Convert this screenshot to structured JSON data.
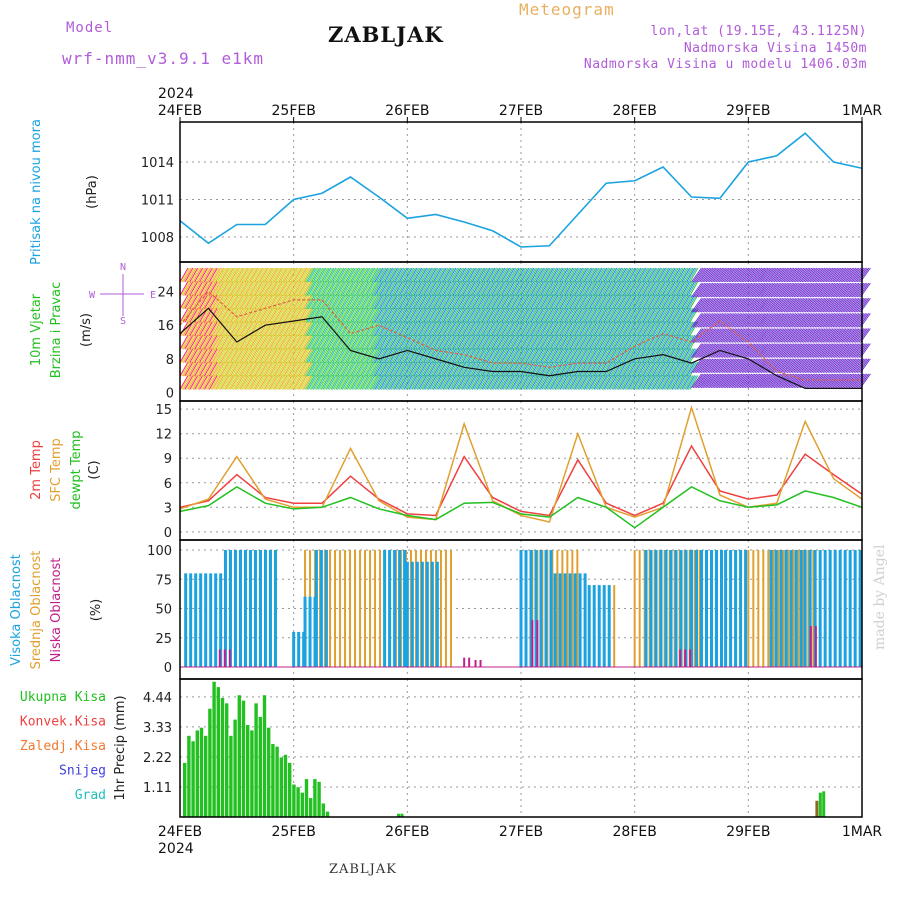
{
  "header": {
    "model_label": "Model",
    "model_name": "wrf-nmm_v3.9.1 e1km",
    "title": "ZABLJAK",
    "meteogram_label": "Meteogram",
    "coords": "lon,lat (19.15E, 43.1125N)",
    "altitude": "Nadmorska Visina 1450m",
    "model_altitude": "Nadmorska Visina u modelu 1406.03m"
  },
  "footer": {
    "station": "ZABLJAK"
  },
  "watermark": "made by Angel",
  "colors": {
    "pressure": "#1aa3e0",
    "temp2m": "#ef4040",
    "sfc": "#e0a030",
    "dewpoint": "#22c020",
    "cloud_high": "#1aa3e0",
    "cloud_mid": "#e0a030",
    "cloud_low": "#c0208a",
    "precip": "#22c020",
    "wind_high": "#8020c0"
  },
  "chart_data": [
    {
      "type": "line",
      "panel": "pressure",
      "x_axis_ticks_top": [
        "24FEB",
        "25FEB",
        "26FEB",
        "27FEB",
        "28FEB",
        "29FEB",
        "1MAR"
      ],
      "year_label": "2024",
      "ylabel_left": "Pritisak na nivou mora",
      "unit": "(hPa)",
      "yticks": [
        1008,
        1011,
        1014
      ],
      "ylim": [
        1006.0,
        1017.2
      ],
      "x": [
        0,
        0.25,
        0.5,
        0.75,
        1.0,
        1.25,
        1.5,
        1.75,
        2.0,
        2.25,
        2.5,
        2.75,
        3.0,
        3.25,
        3.5,
        3.75,
        4.0,
        4.25,
        4.5,
        4.75,
        5.0,
        5.25,
        5.5,
        5.75,
        6.0
      ],
      "series": [
        {
          "values": [
            1009.3,
            1007.5,
            1009.0,
            1009.0,
            1011.0,
            1011.5,
            1012.8,
            1011.2,
            1009.5,
            1009.8,
            1009.2,
            1008.5,
            1007.2,
            1007.3,
            1009.8,
            1012.3,
            1012.5,
            1013.6,
            1011.2,
            1011.1,
            1014.0,
            1014.5,
            1016.3,
            1014.0,
            1013.5
          ]
        }
      ]
    },
    {
      "type": "line",
      "panel": "wind",
      "ylabel_left": "10m Vjetar",
      "ylabel_left2": "Brzina i Pravac",
      "unit": "(m/s)",
      "compass": "N",
      "compass_w": "W",
      "compass_e": "E",
      "compass_s": "S",
      "yticks": [
        0,
        8,
        16,
        24
      ],
      "ylim": [
        -2,
        31
      ],
      "x": [
        0,
        0.25,
        0.5,
        0.75,
        1.0,
        1.25,
        1.5,
        1.75,
        2.0,
        2.25,
        2.5,
        2.75,
        3.0,
        3.25,
        3.5,
        3.75,
        4.0,
        4.25,
        4.5,
        4.75,
        5.0,
        5.25,
        5.5,
        5.75,
        6.0
      ],
      "series": [
        {
          "values": [
            14,
            20,
            12,
            16,
            17,
            18,
            10,
            8,
            10,
            8,
            6,
            5,
            5,
            4,
            5,
            5,
            8,
            9,
            7,
            10,
            8,
            4,
            1,
            1,
            1
          ]
        },
        {
          "values": [
            16,
            24,
            18,
            20,
            22,
            22,
            14,
            16,
            13,
            10,
            9,
            7,
            7,
            6,
            7,
            7,
            11,
            14,
            12,
            17,
            12,
            5,
            3,
            3,
            3
          ]
        }
      ]
    },
    {
      "type": "line",
      "panel": "temperature",
      "ylabel_left": "2m Temp",
      "ylabel_left2": "SFC Temp",
      "ylabel_left3": "dewpt Temp",
      "unit": "(C)",
      "yticks": [
        0,
        3,
        6,
        9,
        12,
        15
      ],
      "ylim": [
        -1.0,
        16.0
      ],
      "x": [
        0,
        0.25,
        0.5,
        0.75,
        1.0,
        1.25,
        1.5,
        1.75,
        2.0,
        2.25,
        2.5,
        2.75,
        3.0,
        3.25,
        3.5,
        3.75,
        4.0,
        4.25,
        4.5,
        4.75,
        5.0,
        5.25,
        5.5,
        5.75,
        6.0
      ],
      "series": [
        {
          "name": "2m Temp",
          "values": [
            3.0,
            3.8,
            7.0,
            4.2,
            3.5,
            3.5,
            6.8,
            4.0,
            2.2,
            2.0,
            9.2,
            4.2,
            2.5,
            2.0,
            8.8,
            3.5,
            2.0,
            3.5,
            10.5,
            5.0,
            4.0,
            4.5,
            9.5,
            7.0,
            4.6
          ]
        },
        {
          "name": "SFC Temp",
          "values": [
            2.8,
            4.0,
            9.2,
            4.0,
            3.0,
            3.0,
            10.2,
            3.8,
            1.8,
            1.5,
            13.2,
            3.8,
            2.0,
            1.2,
            12.0,
            3.0,
            1.8,
            3.0,
            15.2,
            4.5,
            3.0,
            3.5,
            13.5,
            6.5,
            4.0
          ]
        },
        {
          "name": "dewpt Temp",
          "values": [
            2.5,
            3.2,
            5.5,
            3.5,
            2.8,
            3.0,
            4.2,
            2.8,
            2.0,
            1.5,
            3.5,
            3.6,
            2.2,
            1.8,
            4.2,
            3.0,
            0.5,
            3.0,
            5.5,
            3.8,
            3.0,
            3.3,
            5.0,
            4.2,
            3.0
          ]
        }
      ]
    },
    {
      "type": "bar",
      "panel": "clouds",
      "ylabel_left": "Visoka Oblacnost",
      "ylabel_left2": "Srednja Oblacnost",
      "ylabel_left3": "Niska Oblacnost",
      "unit": "(%)",
      "yticks": [
        0,
        25,
        50,
        75,
        100
      ],
      "ylim": [
        0,
        100
      ],
      "high_segments": [
        [
          0.05,
          0.4,
          80
        ],
        [
          0.4,
          0.85,
          100
        ],
        [
          1.0,
          1.1,
          30
        ],
        [
          1.1,
          1.2,
          60
        ],
        [
          1.2,
          1.3,
          100
        ],
        [
          1.8,
          2.0,
          100
        ],
        [
          2.0,
          2.3,
          90
        ],
        [
          3.0,
          3.3,
          100
        ],
        [
          3.3,
          3.6,
          80
        ],
        [
          3.6,
          3.8,
          70
        ],
        [
          4.1,
          4.5,
          100
        ],
        [
          4.5,
          4.8,
          100
        ],
        [
          4.8,
          5.0,
          100
        ],
        [
          5.2,
          5.5,
          100
        ],
        [
          5.5,
          6.0,
          100
        ]
      ],
      "mid_segments": [
        [
          1.1,
          1.9,
          100
        ],
        [
          1.9,
          2.4,
          100
        ],
        [
          3.1,
          3.5,
          100
        ],
        [
          3.6,
          3.85,
          70
        ],
        [
          4.0,
          4.6,
          100
        ],
        [
          5.0,
          5.6,
          100
        ]
      ],
      "low_segments": [
        [
          0.35,
          0.45,
          15
        ],
        [
          2.5,
          2.55,
          8
        ],
        [
          2.6,
          2.65,
          6
        ],
        [
          3.1,
          3.15,
          40
        ],
        [
          4.4,
          4.5,
          15
        ],
        [
          5.55,
          5.6,
          35
        ]
      ]
    },
    {
      "type": "bar",
      "panel": "precipitation",
      "ylabels": [
        "Ukupna Kisa",
        "Konvek.Kisa",
        "Zaledj.Kisa",
        "Snijeg",
        "Grad"
      ],
      "ylabel_colors": [
        "#22c020",
        "#ef4040",
        "#f07a30",
        "#4040e0",
        "#20c0c0"
      ],
      "unit": "1hr Precip (mm)",
      "yticks": [
        1.11,
        2.22,
        3.33,
        4.44
      ],
      "ylim": [
        0,
        5.1
      ],
      "x_axis_ticks_bottom": [
        "24FEB",
        "25FEB",
        "26FEB",
        "27FEB",
        "28FEB",
        "29FEB",
        "1MAR"
      ],
      "year_label": "2024",
      "bars": [
        2.0,
        3.0,
        2.8,
        3.2,
        3.3,
        3.0,
        4.0,
        5.0,
        4.8,
        4.4,
        4.2,
        3.0,
        3.6,
        4.5,
        4.3,
        3.4,
        3.2,
        4.2,
        3.7,
        4.5,
        3.3,
        2.7,
        2.6,
        2.2,
        2.3,
        2.0,
        1.2,
        1.1,
        0.9,
        1.4,
        0.7,
        1.4,
        1.3,
        0.5,
        0.2
      ],
      "late_bars": [
        [
          5.59,
          0.6
        ],
        [
          5.62,
          0.9
        ],
        [
          5.65,
          0.95
        ]
      ],
      "small_bars": [
        [
          1.91,
          0.12
        ],
        [
          1.94,
          0.12
        ]
      ]
    }
  ]
}
